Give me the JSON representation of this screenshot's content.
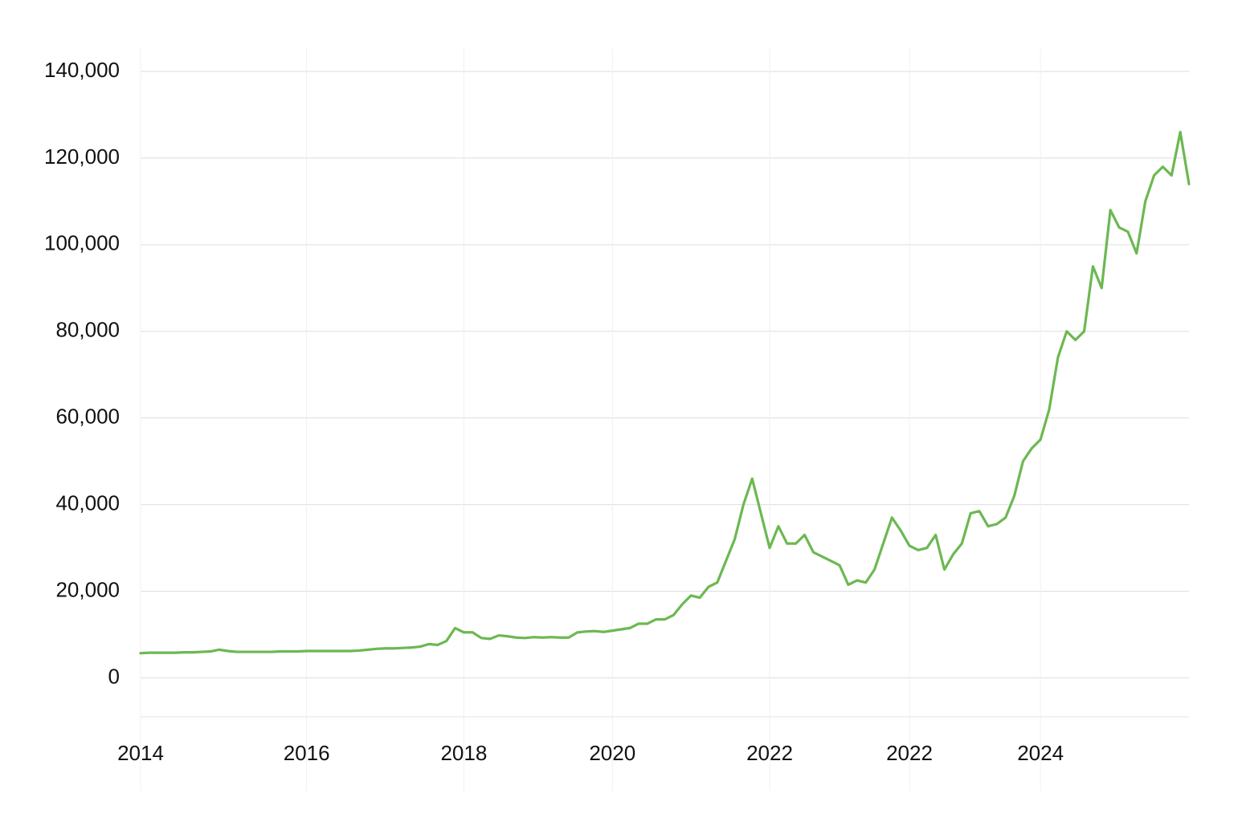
{
  "chart_data": {
    "type": "line",
    "categories": [
      "2014",
      null,
      null,
      null,
      null,
      null,
      null,
      null,
      null,
      null,
      null,
      null,
      null,
      null,
      null,
      null,
      null,
      null,
      null,
      "2016",
      null,
      null,
      null,
      null,
      null,
      null,
      null,
      null,
      null,
      null,
      null,
      null,
      null,
      null,
      null,
      null,
      null,
      "2018",
      null,
      null,
      null,
      null,
      null,
      null,
      null,
      null,
      null,
      null,
      null,
      null,
      null,
      null,
      null,
      null,
      "2020",
      null,
      null,
      null,
      null,
      null,
      null,
      null,
      null,
      null,
      null,
      null,
      null,
      null,
      null,
      null,
      null,
      null,
      "2022",
      null,
      null,
      null,
      null,
      null,
      null,
      null,
      null,
      null,
      null,
      null,
      null,
      null,
      null,
      null,
      "2022",
      null,
      null,
      null,
      null,
      null,
      null,
      null,
      null,
      null,
      null,
      null,
      null,
      null,
      null,
      "2024",
      null,
      null,
      null,
      null,
      null,
      null,
      null,
      null,
      null,
      null,
      null,
      null,
      null,
      null,
      null,
      null,
      null
    ],
    "values": [
      5700,
      5800,
      5800,
      5800,
      5800,
      5900,
      5900,
      6000,
      6100,
      6500,
      6200,
      6000,
      6000,
      6000,
      6000,
      6000,
      6100,
      6100,
      6100,
      6200,
      6200,
      6200,
      6200,
      6200,
      6200,
      6300,
      6500,
      6700,
      6800,
      6800,
      6900,
      7000,
      7200,
      7800,
      7600,
      8500,
      11500,
      10500,
      10500,
      9200,
      9000,
      9800,
      9600,
      9300,
      9200,
      9400,
      9300,
      9400,
      9300,
      9300,
      10500,
      10700,
      10800,
      10600,
      10900,
      11200,
      11500,
      12500,
      12500,
      13500,
      13500,
      14500,
      17000,
      19000,
      18500,
      21000,
      22000,
      27000,
      32000,
      40000,
      46000,
      38000,
      30000,
      35000,
      31000,
      31000,
      33000,
      29000,
      28000,
      27000,
      26000,
      21500,
      22500,
      22000,
      25000,
      31000,
      37000,
      34000,
      30500,
      29500,
      30000,
      33000,
      25000,
      28500,
      31000,
      38000,
      38500,
      35000,
      35500,
      37000,
      42000,
      50000,
      53000,
      55000,
      62000,
      74000,
      80000,
      78000,
      80000,
      95000,
      90000,
      108000,
      104000,
      103000,
      98000,
      110000,
      116000,
      118000,
      116000,
      126000,
      114000
    ],
    "color": "#6cb851",
    "ylim": [
      -9000,
      140000
    ],
    "yticks": [
      0,
      {
        "value": 20000,
        "label": "20,000"
      },
      {
        "value": 40000,
        "label": "40,000"
      },
      {
        "value": 60000,
        "label": "60,000"
      },
      {
        "value": 80000,
        "label": "80,000"
      },
      {
        "value": 100000,
        "label": "100,000"
      },
      {
        "value": 120000,
        "label": "120,000"
      },
      {
        "value": 140000,
        "label": "140,000"
      }
    ],
    "grid": true
  }
}
